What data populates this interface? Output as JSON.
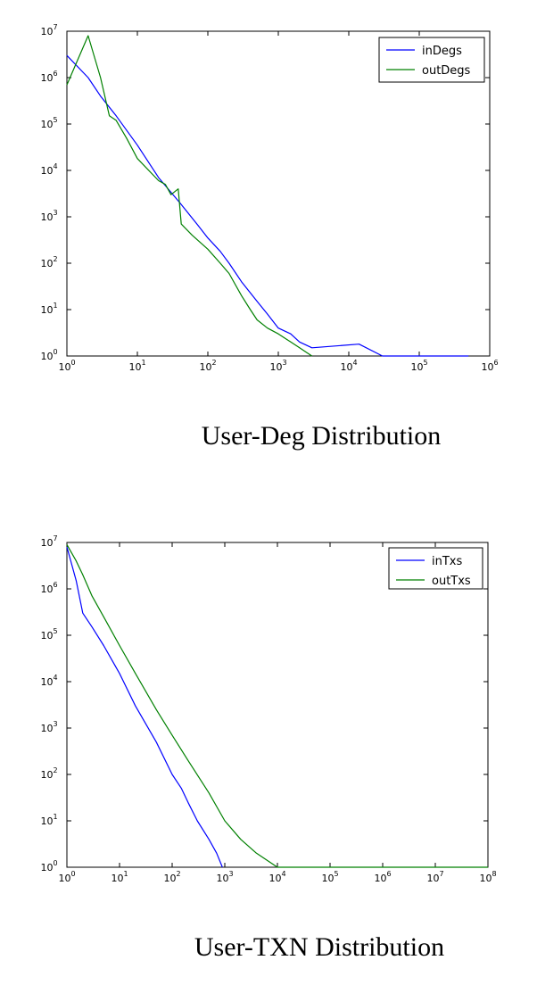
{
  "chart_data": [
    {
      "type": "line",
      "title": "",
      "caption": "User-Deg Distribution",
      "xlabel": "",
      "ylabel": "",
      "xscale": "log",
      "yscale": "log",
      "xlim": [
        1,
        1000000
      ],
      "ylim": [
        1,
        10000000
      ],
      "x_ticks": [
        {
          "base": "10",
          "exp": "0"
        },
        {
          "base": "10",
          "exp": "1"
        },
        {
          "base": "10",
          "exp": "2"
        },
        {
          "base": "10",
          "exp": "3"
        },
        {
          "base": "10",
          "exp": "4"
        },
        {
          "base": "10",
          "exp": "5"
        },
        {
          "base": "10",
          "exp": "6"
        }
      ],
      "y_ticks": [
        {
          "base": "10",
          "exp": "0"
        },
        {
          "base": "10",
          "exp": "1"
        },
        {
          "base": "10",
          "exp": "2"
        },
        {
          "base": "10",
          "exp": "3"
        },
        {
          "base": "10",
          "exp": "4"
        },
        {
          "base": "10",
          "exp": "5"
        },
        {
          "base": "10",
          "exp": "6"
        },
        {
          "base": "10",
          "exp": "7"
        }
      ],
      "grid": false,
      "legend_position": "top-right",
      "series": [
        {
          "name": "inDegs",
          "color": "#0000ff",
          "x": [
            1,
            2,
            3,
            5,
            10,
            20,
            40,
            70,
            100,
            150,
            200,
            300,
            500,
            700,
            1000,
            1500,
            2000,
            3000,
            14000,
            30000,
            100000,
            500000
          ],
          "y": [
            3000000,
            1000000,
            400000,
            150000,
            35000,
            7000,
            2000,
            700,
            350,
            180,
            100,
            40,
            15,
            8,
            4,
            3,
            2,
            1.5,
            1.8,
            1,
            1,
            1
          ]
        },
        {
          "name": "outDegs",
          "color": "#008000",
          "x": [
            1,
            2,
            3,
            4,
            5,
            7,
            10,
            20,
            25,
            30,
            38,
            42,
            60,
            100,
            150,
            200,
            300,
            400,
            500,
            700,
            1000,
            1500,
            2000,
            2500,
            3000
          ],
          "y": [
            700000,
            8000000,
            1000000,
            150000,
            120000,
            50000,
            18000,
            6000,
            5000,
            3000,
            4000,
            700,
            400,
            200,
            100,
            60,
            20,
            10,
            6,
            4,
            3,
            2,
            1.5,
            1.2,
            1
          ]
        }
      ]
    },
    {
      "type": "line",
      "title": "",
      "caption": "User-TXN Distribution",
      "xlabel": "",
      "ylabel": "",
      "xscale": "log",
      "yscale": "log",
      "xlim": [
        1,
        100000000
      ],
      "ylim": [
        1,
        10000000
      ],
      "x_ticks": [
        {
          "base": "10",
          "exp": "0"
        },
        {
          "base": "10",
          "exp": "1"
        },
        {
          "base": "10",
          "exp": "2"
        },
        {
          "base": "10",
          "exp": "3"
        },
        {
          "base": "10",
          "exp": "4"
        },
        {
          "base": "10",
          "exp": "5"
        },
        {
          "base": "10",
          "exp": "6"
        },
        {
          "base": "10",
          "exp": "7"
        },
        {
          "base": "10",
          "exp": "8"
        }
      ],
      "y_ticks": [
        {
          "base": "10",
          "exp": "0"
        },
        {
          "base": "10",
          "exp": "1"
        },
        {
          "base": "10",
          "exp": "2"
        },
        {
          "base": "10",
          "exp": "3"
        },
        {
          "base": "10",
          "exp": "4"
        },
        {
          "base": "10",
          "exp": "5"
        },
        {
          "base": "10",
          "exp": "6"
        },
        {
          "base": "10",
          "exp": "7"
        }
      ],
      "grid": false,
      "legend_position": "top-right",
      "series": [
        {
          "name": "inTxs",
          "color": "#0000ff",
          "x": [
            1,
            1.5,
            2,
            3,
            5,
            10,
            20,
            50,
            100,
            150,
            200,
            300,
            500,
            700,
            900
          ],
          "y": [
            8000000,
            1500000,
            300000,
            150000,
            60000,
            15000,
            3000,
            500,
            100,
            50,
            25,
            10,
            4,
            2,
            1
          ]
        },
        {
          "name": "outTxs",
          "color": "#008000",
          "x": [
            1,
            1.5,
            2,
            3,
            5,
            10,
            20,
            50,
            100,
            200,
            500,
            1000,
            2000,
            4000,
            10000,
            100000,
            1000000,
            100000000
          ],
          "y": [
            9000000,
            4000000,
            2000000,
            700000,
            250000,
            60000,
            15000,
            2500,
            700,
            200,
            40,
            10,
            4,
            2,
            1,
            1,
            1,
            1
          ]
        }
      ]
    }
  ]
}
